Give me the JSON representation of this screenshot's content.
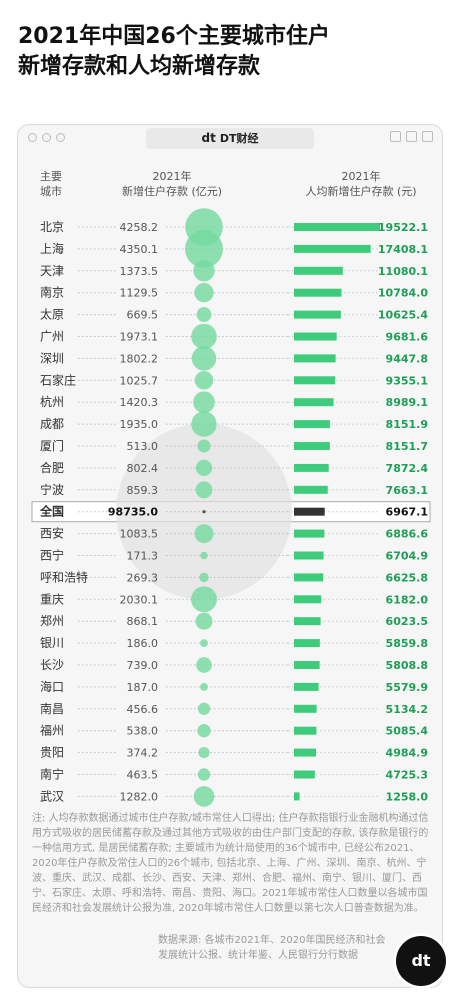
{
  "title_line1": "2021年中国26个主要城市住户",
  "title_line2": "新增存款和人均新增存款",
  "brand": {
    "mark": "dt",
    "name": "DT财经"
  },
  "fab_mark": "dt",
  "headers": {
    "city_line1": "主要",
    "city_line2": "城市",
    "deposit_line1": "2021年",
    "deposit_line2": "新增住户存款 (亿元)",
    "percap_line1": "2021年",
    "percap_line2": "人均新增住户存款 (元)"
  },
  "note": "注: 人均存款数据通过城市住户存款/城市常住人口得出; 住户存款指银行业金融机构通过信用方式吸收的居民储蓄存款及通过其他方式吸收的由住户部门支配的存款, 该存款是银行的一种信用方式, 是居民储蓄存款; 主要城市为统计局使用的36个城市中, 已经公布2021、2020年住户存款及常住人口的26个城市, 包括北京、上海、广州、深圳、南京、杭州、宁波、重庆、武汉、成都、长沙、西安、天津、郑州、合肥、福州、南宁、银川、厦门、西宁、石家庄、太原、呼和浩特、南昌、贵阳、海口。2021年城市常住人口数量以各城市国民经济和社会发展统计公报为准, 2020年城市常住人口数量以第七次人口普查数据为准。",
  "source": "数据来源: 各城市2021年、2020年国民经济和社会发展统计公报、统计年鉴、人民银行分行数据",
  "colors": {
    "green": "#3ecb7c",
    "bubble": "#73d99f",
    "national_bar": "#333333",
    "national_bubble": "#e2e2e2"
  },
  "chart_data": {
    "type": "bar",
    "categories": [
      "北京",
      "上海",
      "天津",
      "南京",
      "太原",
      "广州",
      "深圳",
      "石家庄",
      "杭州",
      "成都",
      "厦门",
      "合肥",
      "宁波",
      "全国",
      "西安",
      "西宁",
      "呼和浩特",
      "重庆",
      "郑州",
      "银川",
      "长沙",
      "海口",
      "南昌",
      "福州",
      "贵阳",
      "南宁",
      "武汉"
    ],
    "highlight": "全国",
    "series": [
      {
        "name": "2021年新增住户存款 (亿元)",
        "render": "bubble",
        "values": [
          4258.2,
          4350.1,
          1373.5,
          1129.5,
          669.5,
          1973.1,
          1802.2,
          1025.7,
          1420.3,
          1935.0,
          513.0,
          802.4,
          859.3,
          98735.0,
          1083.5,
          171.3,
          269.3,
          2030.1,
          868.1,
          186.0,
          739.0,
          187.0,
          456.6,
          538.0,
          374.2,
          463.5,
          1282.0
        ],
        "labels": [
          "4258.2",
          "4350.1",
          "1373.5",
          "1129.5",
          "669.5",
          "1973.1",
          "1802.2",
          "1025.7",
          "1420.3",
          "1935.0",
          "513.0",
          "802.4",
          "859.3",
          "98735.0",
          "1083.5",
          "171.3",
          "269.3",
          "2030.1",
          "868.1",
          "186.0",
          "739.0",
          "187.0",
          "456.6",
          "538.0",
          "374.2",
          "463.5",
          "1282.0"
        ]
      },
      {
        "name": "2021年人均新增住户存款 (元)",
        "render": "bar",
        "values": [
          19522.1,
          17408.1,
          11080.1,
          10784.0,
          10625.4,
          9681.6,
          9447.8,
          9355.1,
          8989.1,
          8151.9,
          8151.7,
          7872.4,
          7663.1,
          6967.1,
          6886.6,
          6704.9,
          6625.8,
          6182.0,
          6023.5,
          5859.8,
          5808.8,
          5579.9,
          5134.2,
          5085.4,
          4984.9,
          4725.3,
          1258.0
        ],
        "labels": [
          "19522.1",
          "17408.1",
          "11080.1",
          "10784.0",
          "10625.4",
          "9681.6",
          "9447.8",
          "9355.1",
          "8989.1",
          "8151.9",
          "8151.7",
          "7872.4",
          "7663.1",
          "6967.1",
          "6886.6",
          "6704.9",
          "6625.8",
          "6182.0",
          "6023.5",
          "5859.8",
          "5808.8",
          "5579.9",
          "5134.2",
          "5085.4",
          "4984.9",
          "4725.3",
          "1258.0"
        ]
      }
    ]
  }
}
